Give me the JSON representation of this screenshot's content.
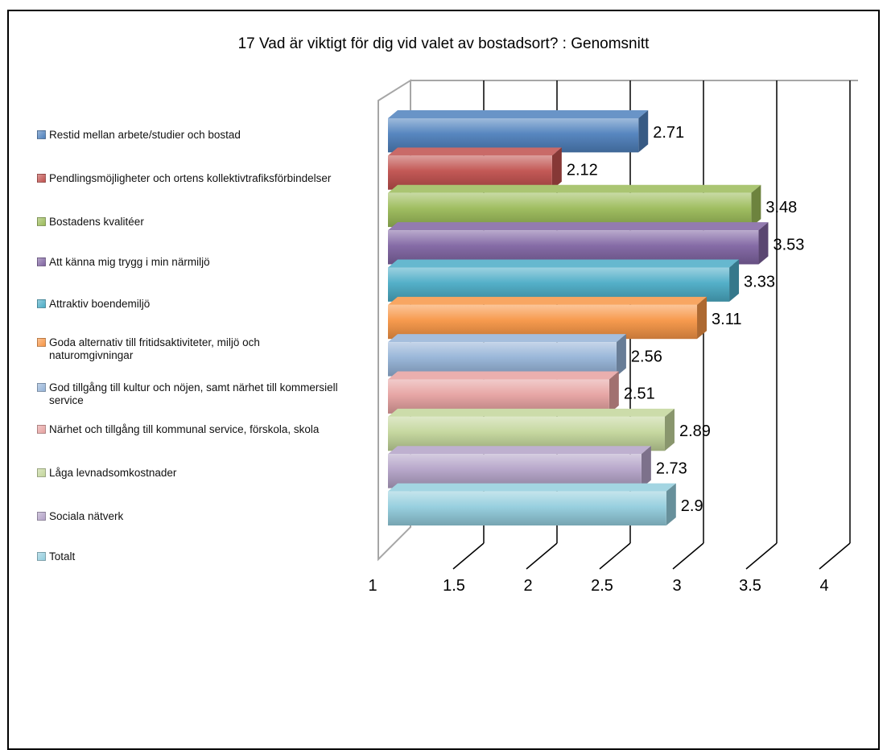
{
  "chart_data": {
    "type": "bar",
    "orientation": "horizontal",
    "title": "17 Vad är viktigt för dig vid valet av bostadsort? : Genomsnitt",
    "xlim": [
      1,
      4
    ],
    "x_ticks": [
      "1",
      "1.5",
      "2",
      "2.5",
      "3",
      "3.5",
      "4"
    ],
    "grid": true,
    "legend_position": "left",
    "categories": [
      "Restid mellan arbete/studier och bostad",
      "Pendlingsmöjligheter och ortens kollektivtrafiksförbindelser",
      "Bostadens kvalitéer",
      "Att känna mig trygg i min närmiljö",
      "Attraktiv boendemiljö",
      "Goda alternativ till fritidsaktiviteter, miljö och naturomgivningar",
      "God tillgång till kultur och nöjen, samt närhet till kommersiell service",
      "Närhet och tillgång till kommunal service, förskola, skola",
      "Låga levnadsomkostnader",
      "Sociala nätverk",
      "Totalt"
    ],
    "values": [
      2.71,
      2.12,
      3.48,
      3.53,
      3.33,
      3.11,
      2.56,
      2.51,
      2.89,
      2.73,
      2.9
    ],
    "value_labels": [
      "2.71",
      "2.12",
      "3.48",
      "3.53",
      "3.33",
      "3.11",
      "2.56",
      "2.51",
      "2.89",
      "2.73",
      "2.9"
    ],
    "colors": [
      "#4F81BD",
      "#C0504D",
      "#9BBB59",
      "#8064A2",
      "#4BACC6",
      "#F79646",
      "#95B3D7",
      "#E6A1A0",
      "#C3D69B",
      "#B3A2C7",
      "#93CDDD"
    ]
  }
}
